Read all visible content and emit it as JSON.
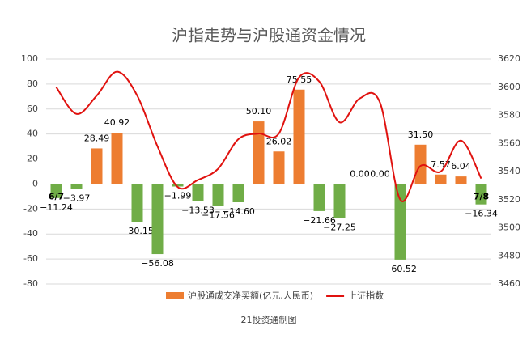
{
  "chart_data": {
    "type": "bar_line",
    "title": "沪指走势与沪股通资金情况",
    "source": "21投资通制图",
    "categories": [
      "6/7",
      null,
      null,
      null,
      null,
      null,
      null,
      null,
      null,
      null,
      null,
      null,
      null,
      null,
      null,
      null,
      null,
      null,
      null,
      null,
      null,
      "7/8"
    ],
    "series": [
      {
        "name": "沪股通成交净买额(亿元,人民币)",
        "type": "bar",
        "color": "#ed7d31",
        "negative_color": "#70ad47",
        "values": [
          -11.24,
          -3.97,
          28.49,
          40.92,
          -30.15,
          -56.08,
          -1.99,
          -13.53,
          -17.56,
          -14.6,
          50.1,
          26.02,
          75.55,
          -21.66,
          -27.25,
          0,
          0,
          -60.52,
          31.5,
          7.57,
          6.04,
          -16.34
        ],
        "value_labels": [
          "−11.24",
          "−3.97",
          "28.49",
          "40.92",
          "−30.15",
          "−56.08",
          "−1.99",
          "−13.53",
          "−17.56",
          "−14.60",
          "50.10",
          "26.02",
          "75.55",
          "−21.66",
          "−27.25",
          "0.00",
          "0.00",
          "−60.52",
          "31.50",
          "7.57",
          "6.04",
          "−16.34"
        ]
      },
      {
        "name": "上证指数",
        "type": "line",
        "axis": "y2",
        "color": "#e0120f",
        "values": [
          3600,
          3581,
          3594,
          3611,
          3594,
          3558,
          3529,
          3534,
          3542,
          3563,
          3567,
          3567,
          3607,
          3604,
          3575,
          3592,
          3589,
          3520,
          3544,
          3540,
          3562,
          3535
        ]
      }
    ],
    "ylim": [
      -80,
      100
    ],
    "yticks": [
      -80,
      -60,
      -40,
      -20,
      0,
      20,
      40,
      60,
      80,
      100
    ],
    "y2lim": [
      3460,
      3620
    ],
    "y2ticks": [
      3460,
      3480,
      3500,
      3520,
      3540,
      3560,
      3580,
      3600,
      3620
    ],
    "grid": true,
    "legend": "bottom"
  }
}
